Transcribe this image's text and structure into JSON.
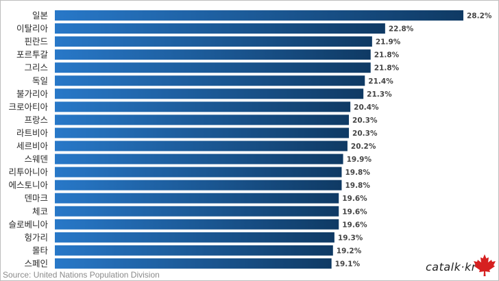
{
  "chart_data": {
    "type": "bar",
    "orientation": "horizontal",
    "categories": [
      "일본",
      "이탈리아",
      "핀란드",
      "포르투갈",
      "그리스",
      "독일",
      "불가리아",
      "크로아티아",
      "프랑스",
      "라트비아",
      "세르비아",
      "스웨덴",
      "리투아니아",
      "에스토니아",
      "덴마크",
      "체코",
      "슬로베니아",
      "헝가리",
      "몰타",
      "스페인"
    ],
    "values": [
      28.2,
      22.8,
      21.9,
      21.8,
      21.8,
      21.4,
      21.3,
      20.4,
      20.3,
      20.3,
      20.2,
      19.9,
      19.8,
      19.8,
      19.6,
      19.6,
      19.6,
      19.3,
      19.2,
      19.1
    ],
    "value_labels": [
      "28.2%",
      "22.8%",
      "21.9%",
      "21.8%",
      "21.8%",
      "21.4%",
      "21.3%",
      "20.4%",
      "20.3%",
      "20.3%",
      "20.2%",
      "19.9%",
      "19.8%",
      "19.8%",
      "19.6%",
      "19.6%",
      "19.6%",
      "19.3%",
      "19.2%",
      "19.1%"
    ],
    "xlim": [
      0,
      28.2
    ],
    "grid": false,
    "legend": "none",
    "colors": {
      "bar_start": "#2878c8",
      "bar_end": "#0f3a64",
      "label": "#2a2a2a",
      "value": "#444444"
    }
  },
  "footer": {
    "source": "Source: United Nations Population Division"
  },
  "brand": {
    "text": "catalk·kr",
    "leaf_color": "#d62020"
  }
}
